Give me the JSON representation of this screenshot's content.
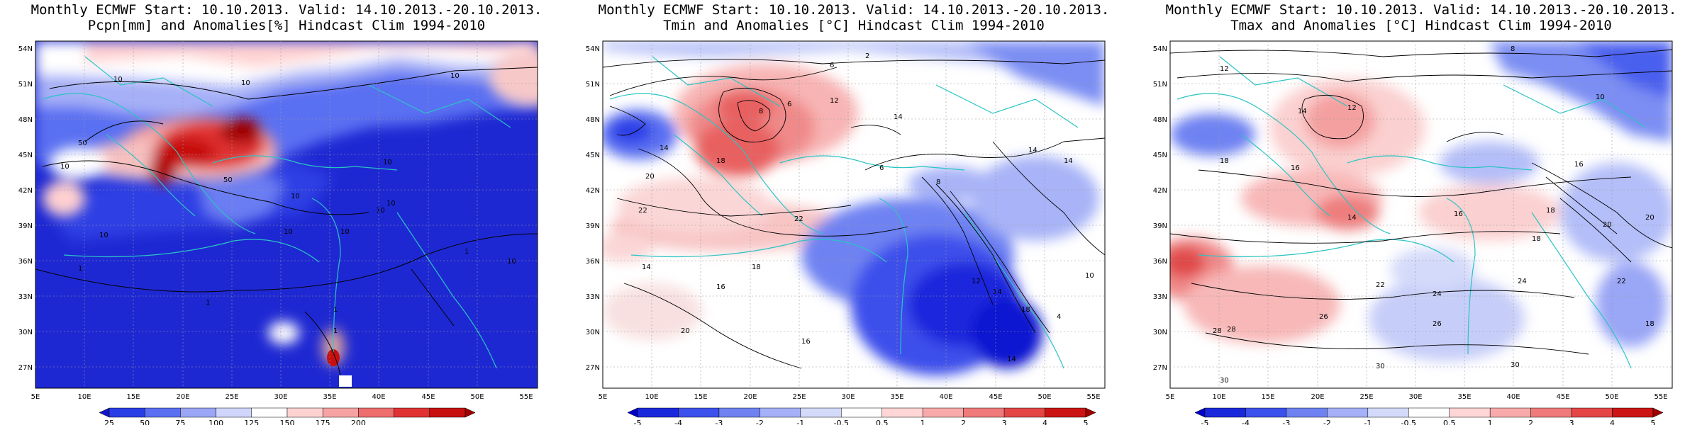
{
  "panels": [
    {
      "title1": "Monthly ECMWF Start: 10.10.2013. Valid: 14.10.2013.-20.10.2013.",
      "title2": "Pcpn[mm] and Anomalies[%] Hindcast Clim 1994-2010",
      "colorbar": {
        "labels": [
          "25",
          "50",
          "75",
          "100",
          "125",
          "150",
          "175",
          "200"
        ],
        "colors": [
          "#1414c8",
          "#2a3ee6",
          "#5a6ff2",
          "#9aa6f6",
          "#d0d6fb",
          "#ffffff",
          "#ffd2d2",
          "#f7a3a3",
          "#ee6d6d",
          "#e03232",
          "#c80f0f",
          "#a00000"
        ]
      },
      "contour_labels": [
        "10",
        "10",
        "10",
        "10",
        "10",
        "10",
        "10",
        "10",
        "10",
        "10",
        "1",
        "1",
        "1",
        "1",
        "1",
        "10",
        "10",
        "50",
        "50"
      ]
    },
    {
      "title1": "Monthly ECMWF Start: 10.10.2013. Valid: 14.10.2013.-20.10.2013.",
      "title2": "Tmin and Anomalies [°C] Hindcast Clim 1994-2010",
      "colorbar": {
        "labels": [
          "-5",
          "-4",
          "-3",
          "-2",
          "-1",
          "-0.5",
          "0.5",
          "1",
          "2",
          "3",
          "4",
          "5"
        ],
        "colors": [
          "#0000c8",
          "#1a28dc",
          "#3c50eb",
          "#6e82f2",
          "#a4b0f7",
          "#d4daf9",
          "#ffffff",
          "#ffd5d5",
          "#f8aaaa",
          "#f07a7a",
          "#e44646",
          "#cc1414",
          "#a00000"
        ]
      },
      "contour_labels": [
        "2",
        "6",
        "8",
        "6",
        "12",
        "14",
        "14",
        "14",
        "18",
        "20",
        "22",
        "22",
        "14",
        "16",
        "12",
        "14",
        "18",
        "18",
        "20",
        "14",
        "16",
        "4",
        "8",
        "6",
        "10",
        "14"
      ]
    },
    {
      "title1": "Monthly ECMWF Start: 10.10.2013. Valid: 14.10.2013.-20.10.2013.",
      "title2": "Tmax and Anomalies [°C] Hindcast Clim 1994-2010",
      "colorbar": {
        "labels": [
          "-5",
          "-4",
          "-3",
          "-2",
          "-1",
          "-0.5",
          "0.5",
          "1",
          "2",
          "3",
          "4",
          "5"
        ],
        "colors": [
          "#0000c8",
          "#1a28dc",
          "#3c50eb",
          "#6e82f2",
          "#a4b0f7",
          "#d4daf9",
          "#ffffff",
          "#ffd5d5",
          "#f8aaaa",
          "#f07a7a",
          "#e44646",
          "#cc1414",
          "#a00000"
        ]
      },
      "contour_labels": [
        "8",
        "12",
        "14",
        "12",
        "10",
        "16",
        "18",
        "14",
        "16",
        "18",
        "20",
        "22",
        "24",
        "26",
        "28",
        "30",
        "30",
        "22",
        "20",
        "18",
        "24",
        "26",
        "28",
        "30",
        "18",
        "16"
      ]
    }
  ],
  "axes": {
    "lon_labels": [
      "5E",
      "10E",
      "15E",
      "20E",
      "25E",
      "30E",
      "35E",
      "40E",
      "45E",
      "50E",
      "55E"
    ],
    "lat_labels": [
      "54N",
      "51N",
      "48N",
      "45N",
      "42N",
      "39N",
      "36N",
      "33N",
      "30N",
      "27N"
    ]
  }
}
